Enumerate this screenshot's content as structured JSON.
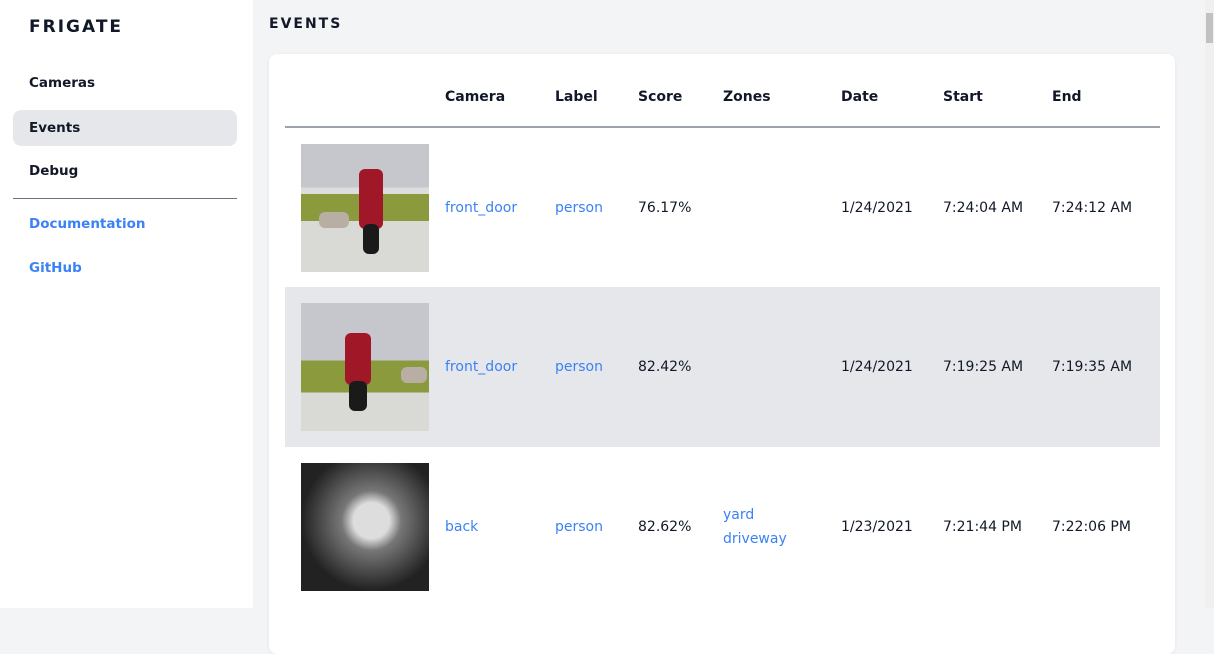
{
  "app": {
    "name": "FRIGATE"
  },
  "sidebar": {
    "items": [
      {
        "label": "Cameras"
      },
      {
        "label": "Events"
      },
      {
        "label": "Debug"
      }
    ],
    "links": [
      {
        "label": "Documentation"
      },
      {
        "label": "GitHub"
      }
    ]
  },
  "page": {
    "title": "EVENTS"
  },
  "table": {
    "headers": [
      "",
      "Camera",
      "Label",
      "Score",
      "Zones",
      "Date",
      "Start",
      "End"
    ],
    "rows": [
      {
        "camera": "front_door",
        "label": "person",
        "score": "76.17%",
        "zones": [
          "",
          ""
        ],
        "date": "1/24/2021",
        "start": "7:24:04 AM",
        "end": "7:24:12 AM"
      },
      {
        "camera": "front_door",
        "label": "person",
        "score": "82.42%",
        "zones": [
          "",
          ""
        ],
        "date": "1/24/2021",
        "start": "7:19:25 AM",
        "end": "7:19:35 AM"
      },
      {
        "camera": "back",
        "label": "person",
        "score": "82.62%",
        "zones": [
          "yard",
          "driveway"
        ],
        "date": "1/23/2021",
        "start": "7:21:44 PM",
        "end": "7:22:06 PM"
      }
    ]
  },
  "colors": {
    "link": "#3b82f6",
    "active_bg": "#e5e7eb",
    "bg": "#f3f4f6"
  }
}
